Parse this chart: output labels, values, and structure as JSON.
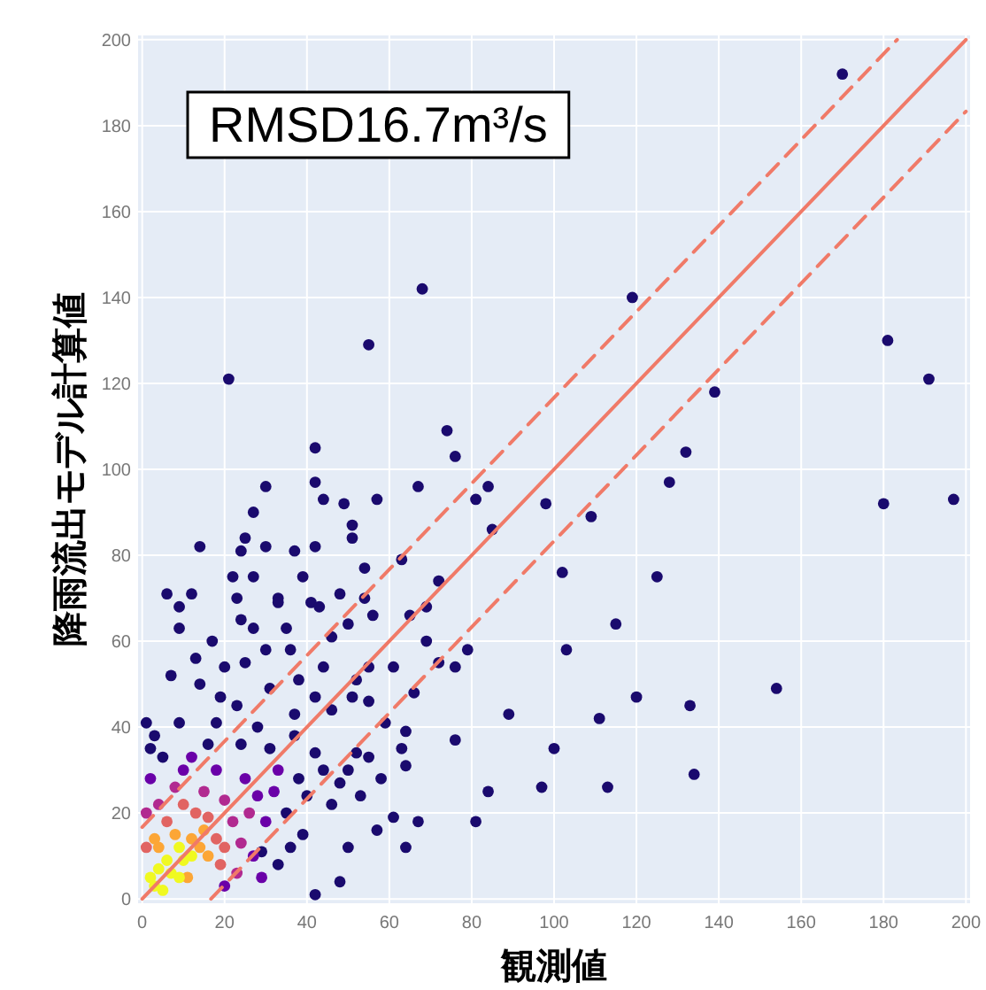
{
  "chart_data": {
    "type": "scatter",
    "xlabel": "観測値",
    "ylabel": "降雨流出モデル計算値",
    "annotations": [
      "RMSD16.7m³/s"
    ],
    "xlim": [
      -1,
      201
    ],
    "ylim": [
      -1,
      201
    ],
    "xticks": [
      0,
      20,
      40,
      60,
      80,
      100,
      120,
      140,
      160,
      180,
      200
    ],
    "yticks": [
      0,
      20,
      40,
      60,
      80,
      100,
      120,
      140,
      160,
      180,
      200
    ],
    "grid": true,
    "marker": "circle",
    "series": [
      {
        "color": "#1a0a6e",
        "x": [
          170,
          21,
          68,
          55,
          119,
          74,
          76,
          42,
          42,
          181,
          191,
          139,
          132,
          128,
          180,
          197,
          125,
          115,
          120,
          133,
          154,
          134,
          113,
          111,
          30,
          67,
          84,
          57,
          81,
          98,
          109,
          44,
          49,
          27,
          51,
          85,
          51,
          25,
          14,
          30,
          42,
          24,
          37,
          63,
          54,
          22,
          27,
          39,
          102,
          72,
          6,
          12,
          33,
          48,
          23,
          54,
          41,
          33,
          9,
          43,
          56,
          65,
          69,
          24,
          27,
          50,
          46,
          9,
          35,
          17,
          69,
          30,
          103,
          36,
          13,
          79,
          55,
          72,
          76,
          20,
          25,
          44,
          61,
          7,
          14,
          31,
          38,
          52,
          19,
          23,
          42,
          51,
          55,
          66,
          89,
          1,
          9,
          37,
          46,
          59,
          64,
          76,
          100,
          2,
          63,
          52,
          64,
          84,
          97,
          61,
          67,
          81,
          57,
          50,
          64,
          48,
          42,
          39,
          29,
          33,
          35,
          38,
          31,
          36,
          5,
          24,
          40,
          3,
          16,
          44,
          46,
          42,
          48,
          37,
          50,
          53,
          28,
          18,
          55,
          58
        ],
        "values": [
          192,
          121,
          142,
          129,
          140,
          109,
          103,
          105,
          97,
          130,
          121,
          118,
          104,
          97,
          92,
          93,
          75,
          64,
          47,
          45,
          49,
          29,
          26,
          42,
          96,
          96,
          96,
          93,
          93,
          92,
          89,
          93,
          92,
          90,
          87,
          86,
          84,
          84,
          82,
          82,
          82,
          81,
          81,
          79,
          77,
          75,
          75,
          75,
          76,
          74,
          71,
          71,
          70,
          71,
          70,
          70,
          69,
          69,
          68,
          68,
          66,
          66,
          68,
          65,
          63,
          64,
          61,
          63,
          63,
          60,
          60,
          58,
          58,
          58,
          56,
          58,
          54,
          55,
          54,
          54,
          55,
          54,
          54,
          52,
          50,
          49,
          51,
          51,
          47,
          45,
          47,
          47,
          46,
          48,
          43,
          41,
          41,
          43,
          44,
          41,
          39,
          37,
          35,
          35,
          35,
          34,
          31,
          25,
          26,
          19,
          18,
          18,
          16,
          12,
          12,
          4,
          1,
          15,
          11,
          8,
          20,
          28,
          35,
          12,
          33,
          36,
          24,
          38,
          36,
          30,
          22,
          34,
          27,
          38,
          30,
          24,
          40,
          41,
          33,
          28
        ]
      },
      {
        "color": "#6a00a8",
        "x": [
          28,
          25,
          2,
          30,
          18,
          10,
          32,
          27,
          33,
          12,
          29,
          20
        ],
        "values": [
          24,
          28,
          28,
          18,
          30,
          30,
          25,
          10,
          30,
          33,
          5,
          3
        ]
      },
      {
        "color": "#b12a90",
        "x": [
          22,
          20,
          4,
          24,
          15,
          8,
          26,
          1,
          23
        ],
        "values": [
          18,
          23,
          22,
          13,
          25,
          26,
          20,
          20,
          6
        ]
      },
      {
        "color": "#e16462",
        "x": [
          18,
          16,
          6,
          20,
          13,
          19,
          1,
          10
        ],
        "values": [
          14,
          19,
          18,
          12,
          20,
          8,
          12,
          22
        ]
      },
      {
        "color": "#fca636",
        "x": [
          12,
          14,
          15,
          4,
          11,
          16,
          3,
          8
        ],
        "values": [
          14,
          12,
          16,
          12,
          5,
          10,
          14,
          15
        ]
      },
      {
        "color": "#f0f921",
        "x": [
          3,
          5,
          7,
          9,
          10,
          6,
          4,
          9,
          12,
          2
        ],
        "values": [
          3,
          2,
          6,
          5,
          9,
          9,
          7,
          12,
          10,
          5
        ]
      },
      {
        "type": "line",
        "color": "#f07a68",
        "line_style": "solid",
        "marker": "none",
        "x": [
          0,
          200
        ],
        "values": [
          0,
          200
        ]
      },
      {
        "type": "line",
        "color": "#f07a68",
        "line_style": "dashed",
        "marker": "none",
        "x": [
          0,
          183.3
        ],
        "values": [
          16.7,
          200
        ]
      },
      {
        "type": "line",
        "color": "#f07a68",
        "line_style": "dashed",
        "marker": "none",
        "x": [
          16.7,
          200
        ],
        "values": [
          0,
          183.3
        ]
      }
    ]
  }
}
